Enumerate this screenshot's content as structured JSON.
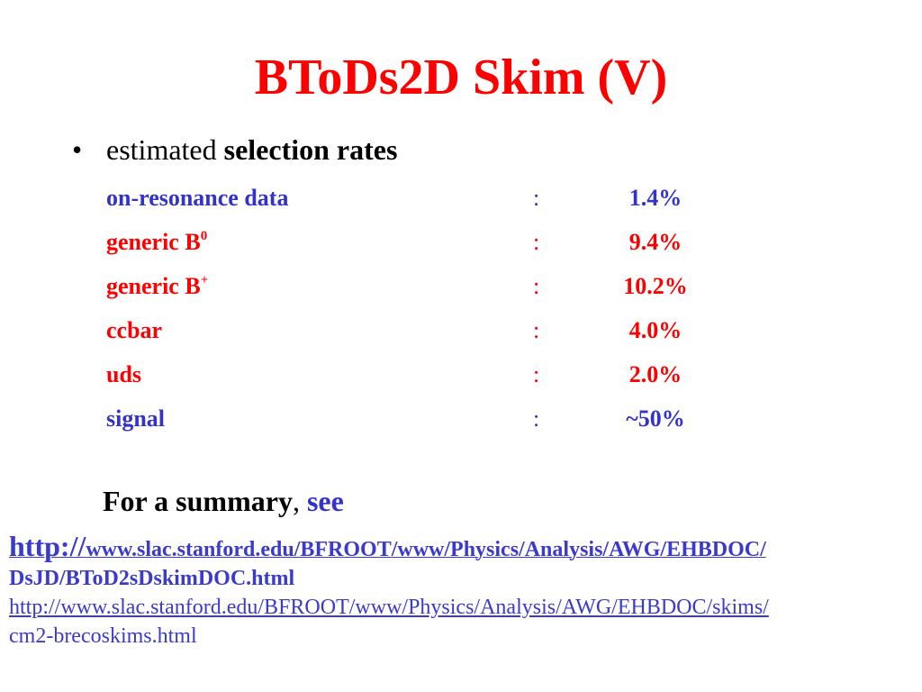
{
  "title": {
    "text": "BToDs2D Skim (V)",
    "color": "#ff0000"
  },
  "bullet": {
    "symbol": "•",
    "text_normal": "estimated",
    "text_bold": "selection rates"
  },
  "rates": [
    {
      "label": "on-resonance data",
      "sup": "",
      "colon": ":",
      "value": "1.4%",
      "color": "#3333cc"
    },
    {
      "label": "generic B",
      "sup": "0",
      "colon": ":",
      "value": "9.4%",
      "color": "#ff0000"
    },
    {
      "label": "generic B",
      "sup": "+",
      "colon": ":",
      "value": "10.2%",
      "color": "#ff0000"
    },
    {
      "label": "ccbar",
      "sup": "",
      "colon": ":",
      "value": "4.0%",
      "color": "#ff0000"
    },
    {
      "label": "uds",
      "sup": "",
      "colon": ":",
      "value": "2.0%",
      "color": "#ff0000"
    },
    {
      "label": "signal",
      "sup": "",
      "colon": ":",
      "value": "~50%",
      "color": "#3333cc"
    }
  ],
  "summary": {
    "text": "For a summary",
    "comma": ",",
    "see": "see",
    "see_color": "#3333cc"
  },
  "link1": {
    "prefix": "http://",
    "line1": "www.slac.stanford.edu/BFROOT/www/Physics/Analysis/AWG/EHBDOC/",
    "line2": "DsJD/BToD2sDskimDOC.html"
  },
  "link2": {
    "line1": "http://www.slac.stanford.edu/BFROOT/www/Physics/Analysis/AWG/EHBDOC/skims/",
    "line2": "cm2-brecoskims.html"
  }
}
